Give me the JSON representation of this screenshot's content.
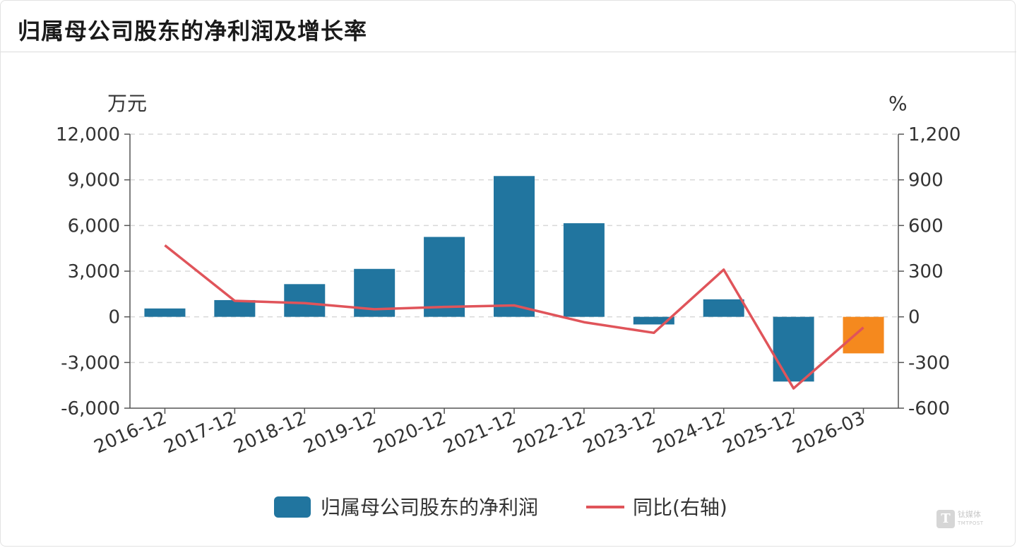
{
  "header": {
    "title": "归属母公司股东的净利润及增长率"
  },
  "chart_data": {
    "type": "bar",
    "categories": [
      "2016-12",
      "2017-12",
      "2018-12",
      "2019-12",
      "2020-12",
      "2021-12",
      "2022-12",
      "2023-12",
      "2024-12",
      "2025-12",
      "2026-03"
    ],
    "series": [
      {
        "name": "归属母公司股东的净利润",
        "type": "bar",
        "axis": "left",
        "values": [
          550,
          1100,
          2150,
          3150,
          5250,
          9250,
          6150,
          -500,
          1150,
          -4250,
          -2400
        ],
        "color": "#21759f",
        "highlight_color": "#f5891e",
        "highlight_index": 10
      },
      {
        "name": "同比(右轴)",
        "type": "line",
        "axis": "right",
        "values": [
          470,
          105,
          90,
          50,
          65,
          75,
          -35,
          -105,
          310,
          -470,
          -70
        ],
        "color": "#e0545a"
      }
    ],
    "left_axis": {
      "unit": "万元",
      "ylim": [
        -6000,
        12000
      ],
      "ticks": [
        12000,
        9000,
        6000,
        3000,
        0,
        -3000,
        -6000
      ],
      "tick_labels": [
        "12,000",
        "9,000",
        "6,000",
        "3,000",
        "0",
        "-3,000",
        "-6,000"
      ]
    },
    "right_axis": {
      "unit": "%",
      "ylim": [
        -600,
        1200
      ],
      "ticks": [
        1200,
        900,
        600,
        300,
        0,
        -300,
        -600
      ],
      "tick_labels": [
        "1,200",
        "900",
        "600",
        "300",
        "0",
        "-300",
        "-600"
      ]
    },
    "grid": true,
    "legend_position": "bottom-center"
  },
  "watermark": {
    "glyph": "T",
    "line1": "钛媒体",
    "line2": "TMTPOST"
  }
}
